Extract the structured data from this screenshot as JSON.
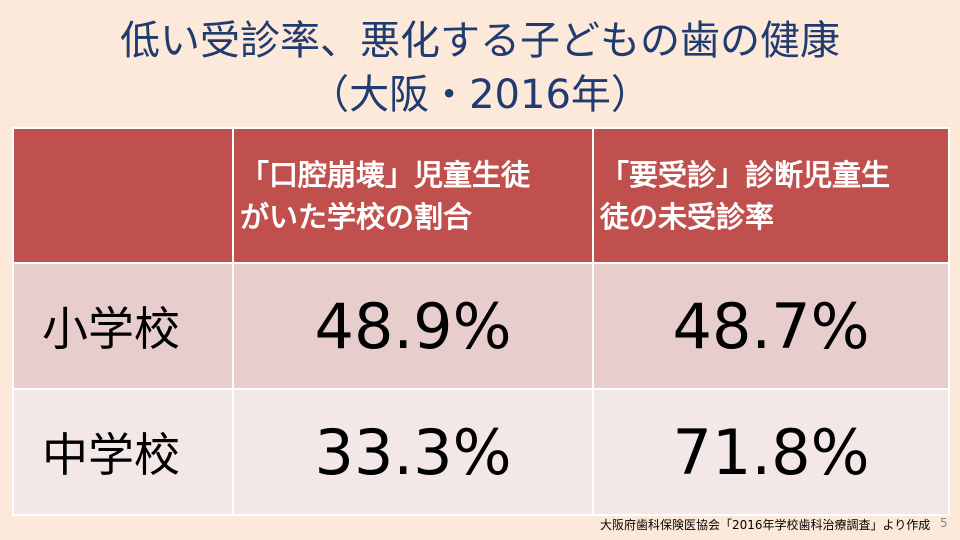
{
  "title": {
    "line1": "低い受診率、悪化する子どもの歯の健康",
    "line2": "（大阪・2016年）"
  },
  "table": {
    "header": [
      [],
      [
        "「口腔崩壊」児童生徒",
        "がいた学校の割合"
      ],
      [
        "「要受診」診断児童生",
        "徒の未受診率"
      ]
    ],
    "rows": [
      [
        "小学校",
        "48.9%",
        "48.7%"
      ],
      [
        "中学校",
        "33.3%",
        "71.8%"
      ]
    ]
  },
  "footer": {
    "source": "大阪府歯科保険医協会「2016年学校歯科治療調査」より作成",
    "page": "5"
  }
}
